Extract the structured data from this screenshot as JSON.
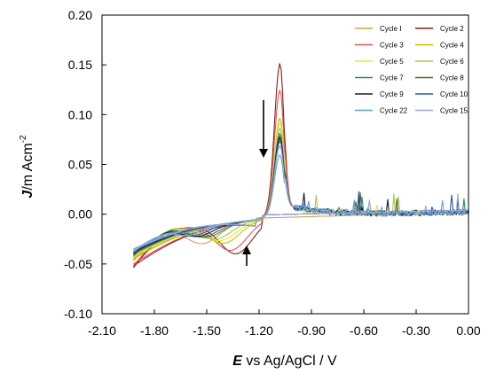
{
  "chart_data": {
    "type": "line",
    "xlabel_var": "E",
    "xlabel_rest": " vs Ag/AgCl / V",
    "ylabel_var": "J",
    "ylabel_rest": "/m Acm",
    "ylabel_sup": "-2",
    "xlim": [
      -2.1,
      0.0
    ],
    "ylim": [
      -0.1,
      0.2
    ],
    "xticks": [
      "-2.10",
      "-1.80",
      "-1.50",
      "-1.20",
      "-0.90",
      "-0.60",
      "-0.30",
      "0.00"
    ],
    "yticks": [
      "-0.10",
      "-0.05",
      "0.00",
      "0.05",
      "0.10",
      "0.15",
      "0.20"
    ],
    "grid": false,
    "legend_position": "top-right",
    "series": [
      {
        "name": "Cycle I",
        "color": "#d4a04c",
        "peak": 0.0,
        "cathodic_min": -0.028,
        "cathodic_E": -1.52,
        "start_J": -0.045
      },
      {
        "name": "Cycle 2",
        "color": "#8b1a1a",
        "peak": 0.155,
        "cathodic_min": -0.042,
        "cathodic_E": -1.33,
        "start_J": -0.052
      },
      {
        "name": "Cycle 3",
        "color": "#e05555",
        "peak": 0.128,
        "cathodic_min": -0.038,
        "cathodic_E": -1.36,
        "start_J": -0.05
      },
      {
        "name": "Cycle 4",
        "color": "#c8c000",
        "peak": 0.1,
        "cathodic_min": -0.03,
        "cathodic_E": -1.4,
        "start_J": -0.044
      },
      {
        "name": "Cycle 5",
        "color": "#e8e830",
        "peak": 0.095,
        "cathodic_min": -0.027,
        "cathodic_E": -1.42,
        "start_J": -0.042
      },
      {
        "name": "Cycle 6",
        "color": "#a8c84a",
        "peak": 0.09,
        "cathodic_min": -0.025,
        "cathodic_E": -1.45,
        "start_J": -0.041
      },
      {
        "name": "Cycle 7",
        "color": "#2a8a6a",
        "peak": 0.085,
        "cathodic_min": -0.022,
        "cathodic_E": -1.5,
        "start_J": -0.04
      },
      {
        "name": "Cycle 8",
        "color": "#556b2f",
        "peak": 0.082,
        "cathodic_min": -0.021,
        "cathodic_E": -1.52,
        "start_J": -0.039
      },
      {
        "name": "Cycle 9",
        "color": "#1a1a3a",
        "peak": 0.08,
        "cathodic_min": -0.02,
        "cathodic_E": -1.55,
        "start_J": -0.038
      },
      {
        "name": "Cycle 10",
        "color": "#2a5aa8",
        "peak": 0.077,
        "cathodic_min": -0.019,
        "cathodic_E": -1.58,
        "start_J": -0.037
      },
      {
        "name": "Cycle 22",
        "color": "#5aa0e0",
        "peak": 0.063,
        "cathodic_min": -0.015,
        "cathodic_E": -1.62,
        "start_J": -0.035
      },
      {
        "name": "Cycle 15",
        "color": "#9aa8d8",
        "peak": 0.072,
        "cathodic_min": -0.018,
        "cathodic_E": -1.6,
        "start_J": -0.036
      }
    ]
  }
}
